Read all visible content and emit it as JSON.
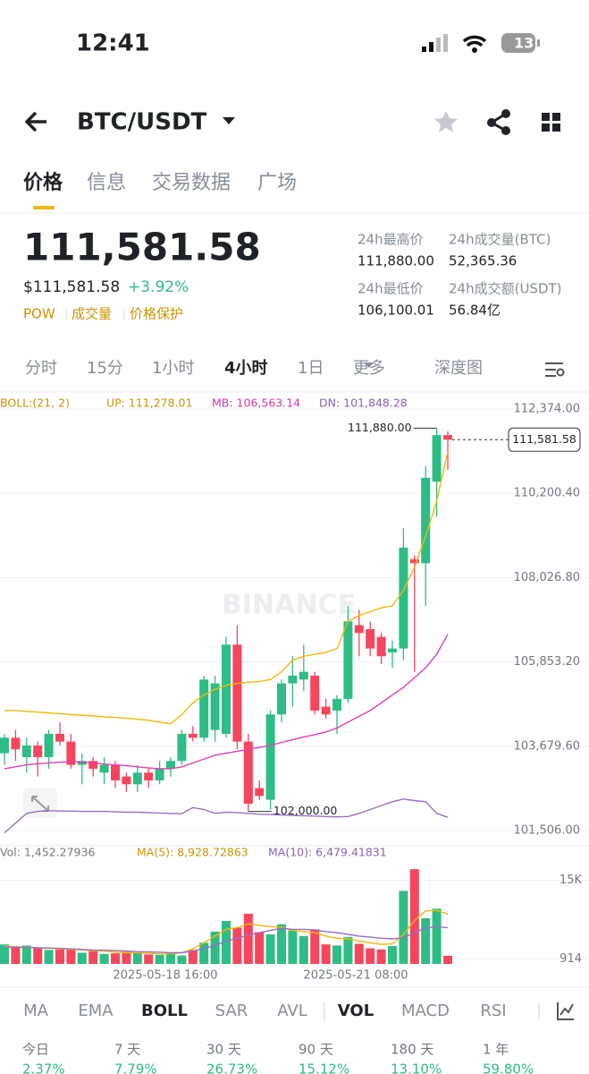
{
  "status": {
    "time": "12:41",
    "battery": "13"
  },
  "header": {
    "pair": "BTC/USDT"
  },
  "tabs": [
    "价格",
    "信息",
    "交易数据",
    "广场"
  ],
  "price": {
    "last": "111,581.58",
    "usd": "$111,581.58",
    "change": "+3.92%",
    "tags": [
      "POW",
      "成交量",
      "价格保护"
    ]
  },
  "stats": [
    {
      "label": "24h最高价",
      "value": "111,880.00"
    },
    {
      "label": "24h成交量(BTC)",
      "value": "52,365.36"
    },
    {
      "label": "24h最低价",
      "value": "106,100.01"
    },
    {
      "label": "24h成交额(USDT)",
      "value": "56.84亿"
    }
  ],
  "intervals": [
    "分时",
    "15分",
    "1小时",
    "4小时",
    "1日",
    "更多",
    "深度图"
  ],
  "chart": {
    "type": "candlestick",
    "watermark": "BINANCE",
    "boll_label": "BOLL:(21, 2)",
    "up_label": "UP: 111,278.01",
    "mb_label": "MB: 106,563.14",
    "dn_label": "DN: 101,848.28",
    "ylim": [
      101230,
      112650
    ],
    "yticks": [
      {
        "value": 112374,
        "label": "112,374.00"
      },
      {
        "value": 110200.4,
        "label": "110,200.40"
      },
      {
        "value": 108026.8,
        "label": "108,026.80"
      },
      {
        "value": 105853.2,
        "label": "105,853.20"
      },
      {
        "value": 103679.6,
        "label": "103,679.60"
      },
      {
        "value": 101506,
        "label": "101,506.00"
      }
    ],
    "high_label": "111,880.00",
    "low_label": "102,000.00",
    "current_label": "111,581.58",
    "up_color": "#2ebd85",
    "down_color": "#f6465d",
    "candles": [
      [
        103500,
        104000,
        103200,
        103900
      ],
      [
        103900,
        104100,
        103300,
        103600
      ],
      [
        103400,
        103900,
        103000,
        103700
      ],
      [
        103700,
        103800,
        102900,
        103400
      ],
      [
        103400,
        104100,
        103100,
        104000
      ],
      [
        104000,
        104300,
        103700,
        103800
      ],
      [
        103800,
        104000,
        103100,
        103200
      ],
      [
        103200,
        103500,
        102700,
        103300
      ],
      [
        103300,
        103400,
        102900,
        103100
      ],
      [
        103000,
        103400,
        102700,
        103200
      ],
      [
        103200,
        103300,
        102600,
        102800
      ],
      [
        102900,
        103000,
        102500,
        102700
      ],
      [
        102700,
        103200,
        102500,
        103000
      ],
      [
        103000,
        103100,
        102600,
        102800
      ],
      [
        102800,
        103300,
        102700,
        103100
      ],
      [
        103100,
        103400,
        102900,
        103300
      ],
      [
        103300,
        104100,
        103200,
        104000
      ],
      [
        104000,
        104200,
        103800,
        103900
      ],
      [
        103900,
        105500,
        103800,
        105400
      ],
      [
        104100,
        105500,
        103800,
        105300
      ],
      [
        104000,
        106500,
        103900,
        106300
      ],
      [
        106300,
        106800,
        103600,
        103800
      ],
      [
        103800,
        104000,
        102000,
        102200
      ],
      [
        102600,
        102800,
        102300,
        102400
      ],
      [
        102300,
        104600,
        102050,
        104500
      ],
      [
        104500,
        105400,
        104300,
        105300
      ],
      [
        105300,
        106000,
        104700,
        105500
      ],
      [
        105400,
        106300,
        105100,
        105600
      ],
      [
        105500,
        105600,
        104500,
        104600
      ],
      [
        104700,
        104900,
        104400,
        104500
      ],
      [
        104600,
        105000,
        104000,
        104900
      ],
      [
        104900,
        107300,
        104800,
        106900
      ],
      [
        106800,
        107200,
        106000,
        106600
      ],
      [
        106700,
        106900,
        106000,
        106200
      ],
      [
        106500,
        106600,
        105800,
        106000
      ],
      [
        106100,
        106400,
        105700,
        106200
      ],
      [
        106200,
        109300,
        105900,
        108800
      ],
      [
        108500,
        108600,
        105600,
        108400
      ],
      [
        108400,
        110900,
        107300,
        110600
      ],
      [
        110500,
        111880,
        109600,
        111700
      ],
      [
        111700,
        111800,
        110800,
        111581.58
      ]
    ],
    "boll": [
      {
        "color": "#f0b90b",
        "values": [
          104600,
          104600,
          104580,
          104560,
          104540,
          104520,
          104500,
          104480,
          104460,
          104440,
          104420,
          104400,
          104380,
          104350,
          104300,
          104260,
          104500,
          104800,
          105000,
          105150,
          105250,
          105300,
          105330,
          105350,
          105400,
          105600,
          105900,
          106000,
          106050,
          106100,
          106200,
          106900,
          107050,
          107150,
          107250,
          107300,
          107700,
          108300,
          109100,
          110000,
          111278.01
        ]
      },
      {
        "color": "#e040b0",
        "values": [
          103100,
          103150,
          103200,
          103230,
          103250,
          103270,
          103280,
          103270,
          103250,
          103220,
          103200,
          103180,
          103150,
          103120,
          103100,
          103100,
          103150,
          103250,
          103350,
          103450,
          103500,
          103550,
          103600,
          103650,
          103700,
          103780,
          103850,
          103920,
          103980,
          104050,
          104150,
          104300,
          104450,
          104600,
          104800,
          105000,
          105200,
          105450,
          105700,
          106050,
          106563.14
        ]
      },
      {
        "color": "#9a6fc4",
        "values": [
          101450,
          101700,
          101950,
          102000,
          102020,
          102010,
          102010,
          102000,
          102000,
          102000,
          101990,
          101980,
          101980,
          101970,
          101960,
          101950,
          101940,
          102100,
          102050,
          101950,
          101980,
          101970,
          101950,
          101930,
          101920,
          101910,
          101900,
          101890,
          101880,
          101870,
          101860,
          101870,
          101950,
          102050,
          102150,
          102250,
          102320,
          102280,
          102250,
          101950,
          101848.28
        ]
      }
    ]
  },
  "volume": {
    "label": "Vol: 1,452.27936",
    "ma5_label": "MA(5): 8,928.72863",
    "ma10_label": "MA(10): 6,479.41831",
    "ylim": [
      0,
      17500
    ],
    "yticks": [
      {
        "value": 15000,
        "label": "15K"
      },
      914
    ],
    "values": [
      3500,
      3000,
      3300,
      2800,
      2500,
      2600,
      2800,
      2000,
      2300,
      1800,
      1900,
      2200,
      2000,
      1700,
      1600,
      2000,
      1500,
      2500,
      3800,
      5800,
      7700,
      6500,
      9000,
      5700,
      5300,
      7100,
      6000,
      5000,
      6200,
      3500,
      3300,
      4800,
      3600,
      2800,
      2600,
      3200,
      13100,
      17000,
      8200,
      9900,
      1452.27936
    ],
    "ma": [
      {
        "color": "#f0b90b",
        "values": [
          3200,
          3100,
          3000,
          2900,
          2800,
          2700,
          2600,
          2500,
          2400,
          2300,
          2100,
          2000,
          2000,
          1900,
          1800,
          1800,
          2000,
          2700,
          3800,
          5000,
          6200,
          6500,
          7200,
          6900,
          6700,
          6600,
          6000,
          5800,
          5600,
          5000,
          4600,
          4500,
          4100,
          3800,
          3500,
          3600,
          5300,
          7800,
          9500,
          9600,
          8928.72863
        ]
      },
      {
        "color": "#9a6fc4",
        "values": [
          3000,
          3000,
          2950,
          2900,
          2850,
          2800,
          2700,
          2600,
          2500,
          2450,
          2400,
          2300,
          2200,
          2150,
          2100,
          2000,
          2000,
          2300,
          2800,
          3300,
          4100,
          4600,
          5200,
          5600,
          6000,
          6400,
          6200,
          6200,
          6100,
          5800,
          5600,
          5300,
          5000,
          4800,
          4600,
          4500,
          4700,
          5600,
          6400,
          6700,
          6479.41831
        ]
      }
    ],
    "x_labels": [
      "2025-05-18 16:00",
      "2025-05-21 08:00"
    ]
  },
  "indicators": [
    "MA",
    "EMA",
    "BOLL",
    "SAR",
    "AVL",
    "VOL",
    "MACD",
    "RSI"
  ],
  "performance": [
    {
      "label": "今日",
      "value": "2.37%"
    },
    {
      "label": "7 天",
      "value": "7.79%"
    },
    {
      "label": "30 天",
      "value": "26.73%"
    },
    {
      "label": "90 天",
      "value": "15.12%"
    },
    {
      "label": "180 天",
      "value": "13.10%"
    },
    {
      "label": "1 年",
      "value": "59.80%"
    }
  ]
}
